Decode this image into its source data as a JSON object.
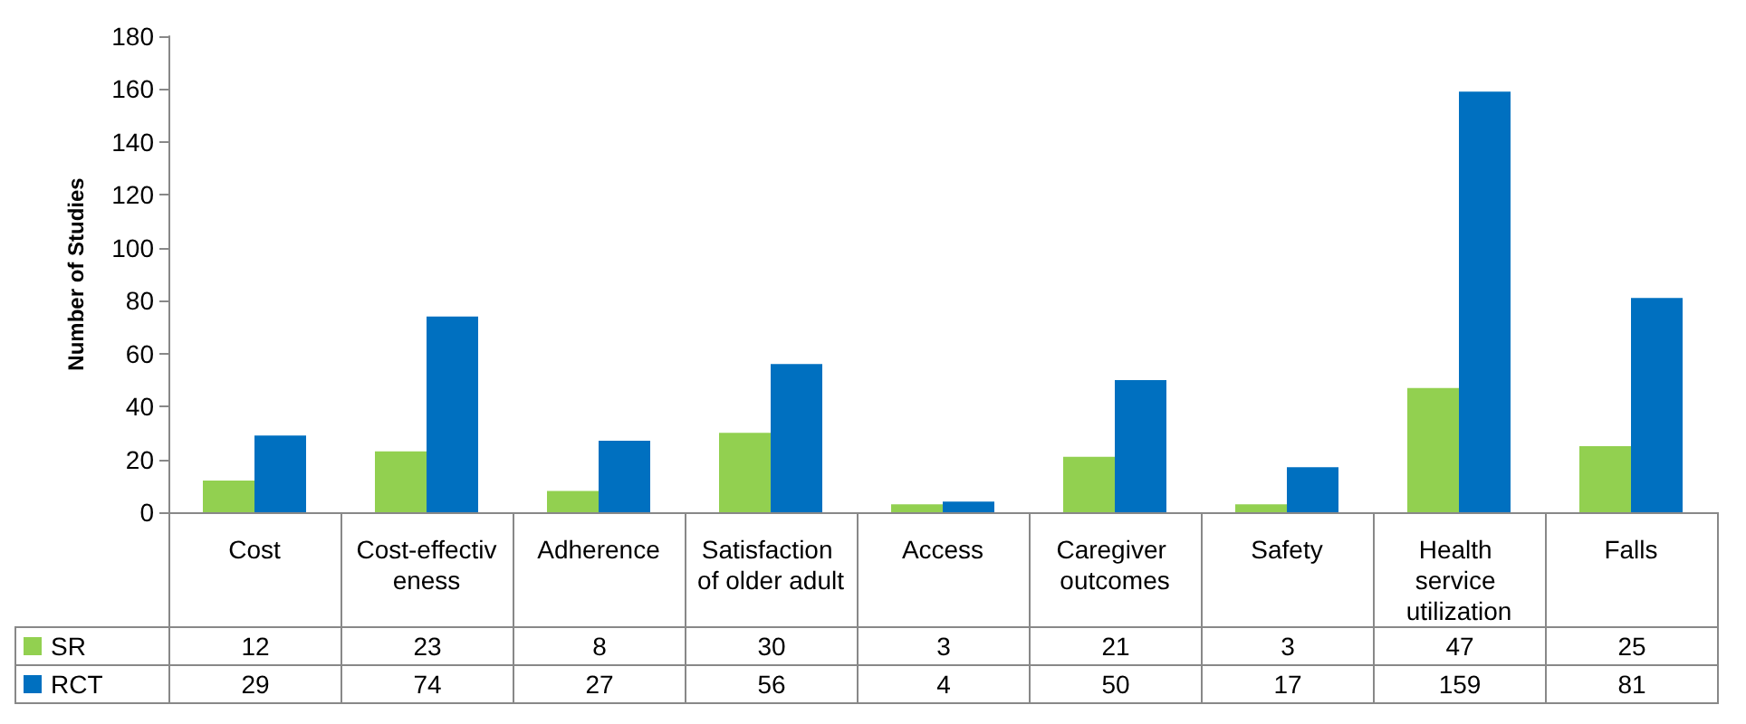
{
  "chart_data": {
    "type": "bar",
    "ylabel": "Number of Studies",
    "categories": [
      "Cost",
      "Cost-effectiveness",
      "Adherence",
      "Satisfaction of older adult",
      "Access",
      "Caregiver outcomes",
      "Safety",
      "Health service utilization",
      "Falls"
    ],
    "series": [
      {
        "name": "SR",
        "color": "#92d050",
        "values": [
          12,
          23,
          8,
          30,
          3,
          21,
          3,
          47,
          25
        ]
      },
      {
        "name": "RCT",
        "color": "#0070c0",
        "values": [
          29,
          74,
          27,
          56,
          4,
          50,
          17,
          159,
          81
        ]
      }
    ],
    "ylim": [
      0,
      180
    ],
    "yticks": [
      0,
      20,
      40,
      60,
      80,
      100,
      120,
      140,
      160,
      180
    ],
    "grid": false,
    "legend": "bottom left",
    "data_labels": true
  }
}
